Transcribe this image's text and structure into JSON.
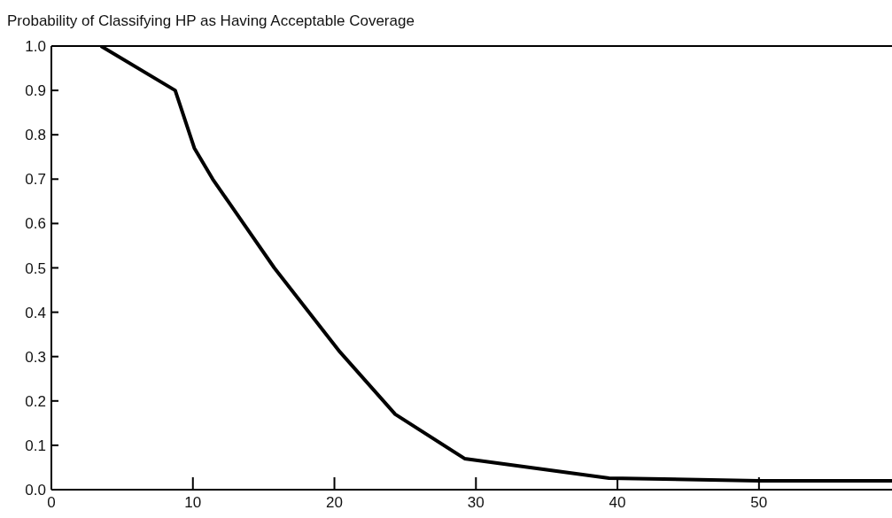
{
  "chart_data": {
    "type": "line",
    "title": "Probability of Classifying HP as Having Acceptable Coverage",
    "x": [
      3.5,
      8.75,
      10.1,
      11.4,
      15.75,
      20.4,
      24.3,
      29.2,
      39.4,
      50,
      59.4
    ],
    "series": [
      {
        "color": "#000000",
        "values": [
          1.0,
          0.9,
          0.77,
          0.7,
          0.5,
          0.31,
          0.17,
          0.07,
          0.026,
          0.02,
          0.02
        ]
      }
    ],
    "xlim": [
      0,
      59.4
    ],
    "xticks": [
      0,
      10,
      20,
      30,
      40,
      50
    ],
    "ylim": [
      0,
      1.0
    ],
    "yticks": [
      {
        "value": 0,
        "label": "0.0"
      },
      0.1,
      0.2,
      0.3,
      0.4,
      0.5,
      0.6,
      0.7,
      0.8,
      0.9,
      {
        "value": 1,
        "label": "1.0"
      }
    ],
    "grid": false,
    "legend": false,
    "marker": "none",
    "line_style": "solid"
  }
}
